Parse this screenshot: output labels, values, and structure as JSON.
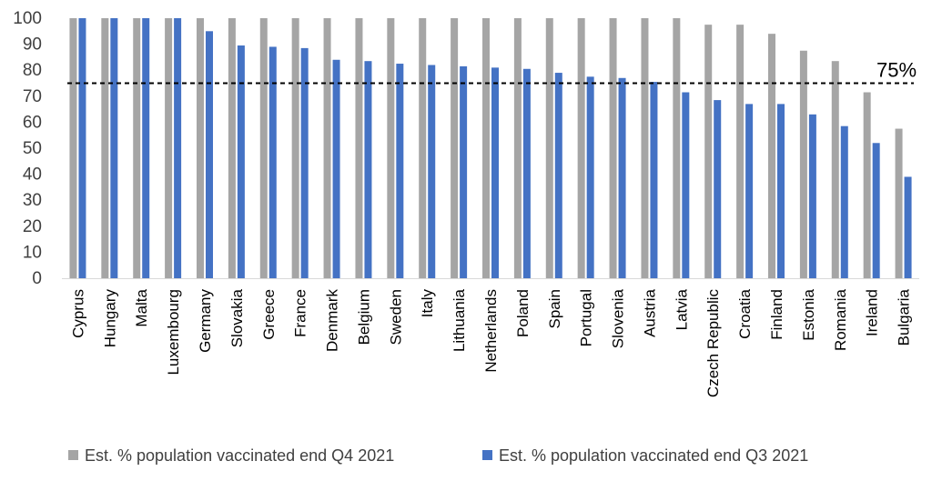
{
  "chart_data": {
    "type": "bar",
    "categories": [
      "Cyprus",
      "Hungary",
      "Malta",
      "Luxembourg",
      "Germany",
      "Slovakia",
      "Greece",
      "France",
      "Denmark",
      "Belgium",
      "Sweden",
      "Italy",
      "Lithuania",
      "Netherlands",
      "Poland",
      "Spain",
      "Portugal",
      "Slovenia",
      "Austria",
      "Latvia",
      "Czech Republic",
      "Croatia",
      "Finland",
      "Estonia",
      "Romania",
      "Ireland",
      "Bulgaria"
    ],
    "series": [
      {
        "name": "Est. % population vaccinated end Q4 2021",
        "color": "#a5a5a5",
        "values": [
          100,
          100,
          100,
          100,
          100,
          100,
          100,
          100,
          100,
          100,
          100,
          100,
          100,
          100,
          100,
          100,
          100,
          100,
          100,
          100,
          97.5,
          97.5,
          94,
          87.5,
          83.5,
          71.5,
          57.5
        ]
      },
      {
        "name": "Est. % population vaccinated end Q3 2021",
        "color": "#4472c4",
        "values": [
          100,
          100,
          100,
          100,
          95,
          89.5,
          89,
          88.5,
          84,
          83.5,
          82.5,
          82,
          81.5,
          81,
          80.5,
          79,
          77.5,
          77,
          75.5,
          71.5,
          68.5,
          67,
          67,
          63,
          58.5,
          52,
          39
        ]
      }
    ],
    "ylim": [
      0,
      100
    ],
    "yticks": [
      0,
      10,
      20,
      30,
      40,
      50,
      60,
      70,
      80,
      90,
      100
    ],
    "reference_line": {
      "value": 75,
      "label": "75%",
      "style": "dashed"
    },
    "legend_position": "bottom",
    "grid": false
  }
}
